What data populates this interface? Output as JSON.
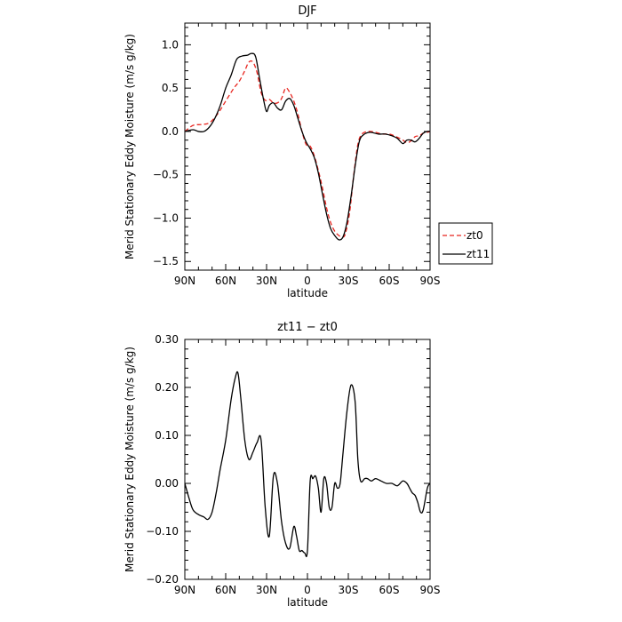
{
  "chart_data": [
    {
      "type": "line",
      "title": "DJF",
      "xlabel": "latitude",
      "ylabel": "Merid Stationary Eddy Moisture (m/s g/kg)",
      "xlim": [
        90,
        -90
      ],
      "ylim": [
        -1.6,
        1.25
      ],
      "xticks": [
        90,
        60,
        30,
        0,
        -30,
        -60,
        -90
      ],
      "xtick_labels": [
        "90N",
        "60N",
        "30N",
        "0",
        "30S",
        "60S",
        "90S"
      ],
      "yticks": [
        -1.5,
        -1.0,
        -0.5,
        0.0,
        0.5,
        1.0
      ],
      "ytick_labels": [
        "−1.5",
        "−1.0",
        "−0.5",
        "0.0",
        "0.5",
        "1.0"
      ],
      "grid": false,
      "legend": "right",
      "series": [
        {
          "name": "zt0",
          "color": "#e8251f",
          "dash": "dashed",
          "x": [
            90,
            84,
            78,
            72,
            66,
            60,
            54,
            50,
            46,
            43,
            40,
            37,
            34,
            31,
            28,
            25,
            22,
            19,
            16,
            13,
            10,
            7,
            4,
            1,
            -2,
            -5,
            -8,
            -11,
            -14,
            -17,
            -20,
            -23,
            -26,
            -28,
            -31,
            -34,
            -37,
            -40,
            -45,
            -50,
            -55,
            -60,
            -65,
            -70,
            -73,
            -76,
            -79,
            -82,
            -85,
            -88,
            -90
          ],
          "y": [
            0.0,
            0.07,
            0.08,
            0.1,
            0.2,
            0.35,
            0.5,
            0.58,
            0.7,
            0.8,
            0.8,
            0.68,
            0.45,
            0.36,
            0.37,
            0.33,
            0.33,
            0.38,
            0.5,
            0.45,
            0.35,
            0.2,
            0.0,
            -0.15,
            -0.17,
            -0.28,
            -0.45,
            -0.65,
            -0.88,
            -1.05,
            -1.15,
            -1.2,
            -1.22,
            -1.17,
            -0.93,
            -0.5,
            -0.15,
            -0.03,
            0.0,
            -0.01,
            -0.03,
            -0.03,
            -0.06,
            -0.1,
            -0.13,
            -0.11,
            -0.06,
            -0.05,
            -0.02,
            -0.01,
            0.0
          ]
        },
        {
          "name": "zt11",
          "color": "#000000",
          "dash": "solid",
          "x": [
            90,
            84,
            80,
            76,
            72,
            68,
            64,
            60,
            56,
            52,
            48,
            44,
            41,
            38,
            35,
            32,
            30,
            28,
            25,
            22,
            19,
            16,
            13,
            10,
            7,
            4,
            1,
            -2,
            -5,
            -8,
            -11,
            -14,
            -17,
            -20,
            -23,
            -26,
            -29,
            -32,
            -35,
            -38,
            -41,
            -46,
            -52,
            -57,
            -62,
            -66,
            -70,
            -73,
            -76,
            -79,
            -82,
            -85,
            -88,
            -90
          ],
          "y": [
            0.0,
            0.02,
            0.0,
            0.0,
            0.05,
            0.15,
            0.3,
            0.5,
            0.65,
            0.83,
            0.87,
            0.88,
            0.9,
            0.86,
            0.6,
            0.35,
            0.23,
            0.3,
            0.33,
            0.27,
            0.25,
            0.35,
            0.38,
            0.3,
            0.15,
            0.0,
            -0.12,
            -0.2,
            -0.3,
            -0.48,
            -0.72,
            -0.95,
            -1.12,
            -1.2,
            -1.25,
            -1.22,
            -1.05,
            -0.75,
            -0.4,
            -0.12,
            -0.04,
            -0.01,
            -0.03,
            -0.03,
            -0.05,
            -0.08,
            -0.14,
            -0.1,
            -0.1,
            -0.12,
            -0.08,
            -0.02,
            0.0,
            0.0
          ]
        }
      ]
    },
    {
      "type": "line",
      "title": "zt11 − zt0",
      "xlabel": "latitude",
      "ylabel": "Merid Stationary Eddy Moisture (m/s g/kg)",
      "xlim": [
        90,
        -90
      ],
      "ylim": [
        -0.2,
        0.3
      ],
      "xticks": [
        90,
        60,
        30,
        0,
        -30,
        -60,
        -90
      ],
      "xtick_labels": [
        "90N",
        "60N",
        "30N",
        "0",
        "30S",
        "60S",
        "90S"
      ],
      "yticks": [
        -0.2,
        -0.1,
        0.0,
        0.1,
        0.2,
        0.3
      ],
      "ytick_labels": [
        "−0.20",
        "−0.10",
        "0.00",
        "0.10",
        "0.20",
        "0.30"
      ],
      "grid": false,
      "series": [
        {
          "color": "#000000",
          "dash": "solid",
          "x": [
            90,
            87,
            84,
            80,
            76,
            73,
            70,
            67,
            64,
            60,
            56,
            53,
            51,
            49,
            46,
            43,
            40,
            37,
            34,
            31,
            28,
            25,
            22,
            19,
            16,
            13,
            10,
            8,
            6,
            4,
            2,
            0,
            -2,
            -4,
            -6,
            -8,
            -10,
            -12,
            -14,
            -16,
            -18,
            -20,
            -22,
            -24,
            -26,
            -29,
            -32,
            -35,
            -37,
            -39,
            -42,
            -44,
            -47,
            -50,
            -54,
            -58,
            -62,
            -66,
            -70,
            -73,
            -75,
            -77,
            -79,
            -81,
            -83,
            -85,
            -88,
            -90
          ],
          "y": [
            0.0,
            -0.03,
            -0.055,
            -0.065,
            -0.07,
            -0.075,
            -0.06,
            -0.02,
            0.03,
            0.09,
            0.175,
            0.22,
            0.23,
            0.18,
            0.09,
            0.05,
            0.065,
            0.085,
            0.09,
            -0.05,
            -0.11,
            0.015,
            0.0,
            -0.08,
            -0.125,
            -0.135,
            -0.09,
            -0.11,
            -0.14,
            -0.14,
            -0.145,
            -0.14,
            0.005,
            0.01,
            0.015,
            -0.01,
            -0.06,
            0.01,
            0.0,
            -0.05,
            -0.05,
            0.0,
            -0.01,
            0.0,
            0.06,
            0.15,
            0.205,
            0.17,
            0.05,
            0.005,
            0.01,
            0.01,
            0.005,
            0.01,
            0.005,
            0.0,
            0.0,
            -0.005,
            0.005,
            0.0,
            -0.01,
            -0.02,
            -0.025,
            -0.04,
            -0.06,
            -0.055,
            -0.01,
            0.0
          ]
        }
      ]
    }
  ]
}
